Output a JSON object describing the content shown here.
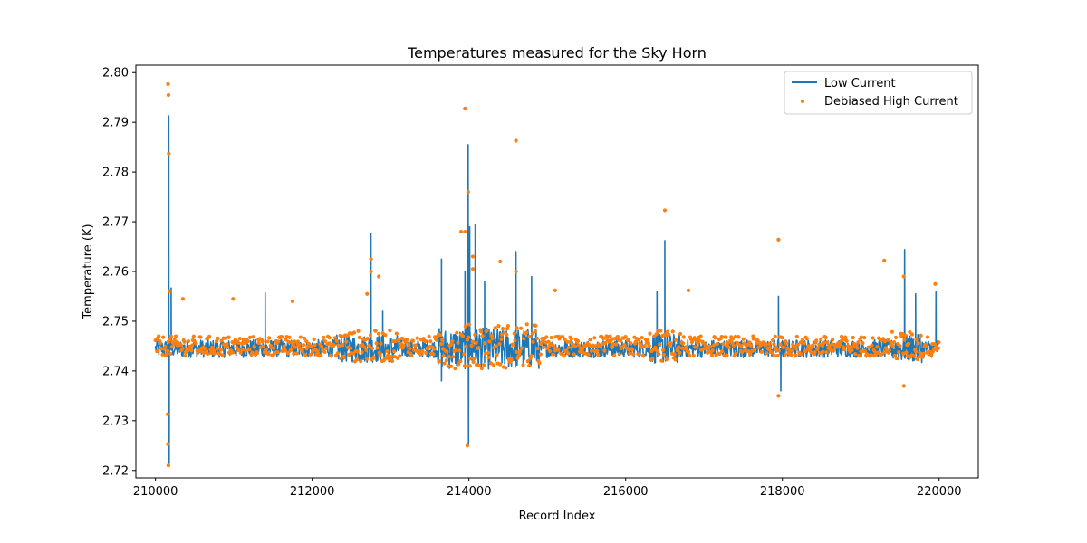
{
  "chart_data": {
    "type": "line",
    "title": "Temperatures measured for the Sky Horn",
    "xlabel": "Record Index",
    "ylabel": "Temperature (K)",
    "xlim": [
      209750,
      220500
    ],
    "ylim": [
      2.7185,
      2.8015
    ],
    "xticks": [
      210000,
      212000,
      214000,
      216000,
      218000,
      220000
    ],
    "xtick_labels": [
      "210000",
      "212000",
      "214000",
      "216000",
      "218000",
      "220000"
    ],
    "yticks": [
      2.72,
      2.73,
      2.74,
      2.75,
      2.76,
      2.77,
      2.78,
      2.79,
      2.8
    ],
    "ytick_labels": [
      "2.72",
      "2.73",
      "2.74",
      "2.75",
      "2.76",
      "2.77",
      "2.78",
      "2.79",
      "2.80"
    ],
    "grid": false,
    "legend_position": "top-right",
    "colors": {
      "low_current": "#1f77b4",
      "high_current": "#ff7f0e"
    },
    "series": [
      {
        "name": "Low Current",
        "kind": "line",
        "baseline": 2.7445,
        "x_range": [
          210000,
          220000
        ],
        "spikes": [
          {
            "x": 210170,
            "y": 2.7913
          },
          {
            "x": 210175,
            "y": 2.721
          },
          {
            "x": 210200,
            "y": 2.7567
          },
          {
            "x": 211400,
            "y": 2.7557
          },
          {
            "x": 212750,
            "y": 2.7676
          },
          {
            "x": 212900,
            "y": 2.752
          },
          {
            "x": 213650,
            "y": 2.7625
          },
          {
            "x": 213650,
            "y": 2.738
          },
          {
            "x": 213950,
            "y": 2.76
          },
          {
            "x": 213990,
            "y": 2.7855
          },
          {
            "x": 213995,
            "y": 2.725
          },
          {
            "x": 214010,
            "y": 2.769
          },
          {
            "x": 214080,
            "y": 2.7695
          },
          {
            "x": 214200,
            "y": 2.758
          },
          {
            "x": 214600,
            "y": 2.764
          },
          {
            "x": 214800,
            "y": 2.759
          },
          {
            "x": 216500,
            "y": 2.7662
          },
          {
            "x": 216400,
            "y": 2.756
          },
          {
            "x": 217950,
            "y": 2.755
          },
          {
            "x": 217980,
            "y": 2.736
          },
          {
            "x": 219560,
            "y": 2.7644
          },
          {
            "x": 219700,
            "y": 2.7555
          },
          {
            "x": 219960,
            "y": 2.756
          }
        ]
      },
      {
        "name": "Debiased High Current",
        "kind": "scatter",
        "baseline": 2.745,
        "x_range": [
          210000,
          220000
        ],
        "outliers": [
          {
            "x": 210160,
            "y": 2.7977
          },
          {
            "x": 210165,
            "y": 2.7955
          },
          {
            "x": 210170,
            "y": 2.7837
          },
          {
            "x": 210155,
            "y": 2.7313
          },
          {
            "x": 210160,
            "y": 2.7253
          },
          {
            "x": 210165,
            "y": 2.721
          },
          {
            "x": 210180,
            "y": 2.756
          },
          {
            "x": 210350,
            "y": 2.7545
          },
          {
            "x": 210990,
            "y": 2.7545
          },
          {
            "x": 211750,
            "y": 2.754
          },
          {
            "x": 212700,
            "y": 2.7555
          },
          {
            "x": 212750,
            "y": 2.7625
          },
          {
            "x": 212750,
            "y": 2.76
          },
          {
            "x": 212850,
            "y": 2.759
          },
          {
            "x": 213950,
            "y": 2.7928
          },
          {
            "x": 213900,
            "y": 2.768
          },
          {
            "x": 213950,
            "y": 2.768
          },
          {
            "x": 213990,
            "y": 2.776
          },
          {
            "x": 214050,
            "y": 2.763
          },
          {
            "x": 214050,
            "y": 2.7605
          },
          {
            "x": 214400,
            "y": 2.762
          },
          {
            "x": 214600,
            "y": 2.7863
          },
          {
            "x": 214600,
            "y": 2.76
          },
          {
            "x": 213980,
            "y": 2.725
          },
          {
            "x": 215100,
            "y": 2.7562
          },
          {
            "x": 216500,
            "y": 2.7723
          },
          {
            "x": 216800,
            "y": 2.7562
          },
          {
            "x": 217950,
            "y": 2.7664
          },
          {
            "x": 217950,
            "y": 2.735
          },
          {
            "x": 219300,
            "y": 2.7622
          },
          {
            "x": 219550,
            "y": 2.759
          },
          {
            "x": 219550,
            "y": 2.737
          },
          {
            "x": 219950,
            "y": 2.7575
          }
        ]
      }
    ]
  }
}
